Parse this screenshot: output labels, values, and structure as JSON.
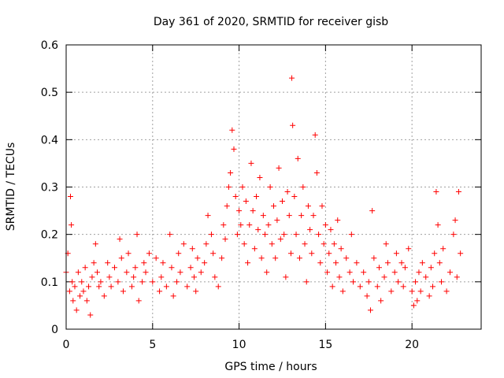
{
  "chart_data": {
    "type": "scatter",
    "title": "Day 361 of 2020, SRMTID for receiver gisb",
    "xlabel": "GPS time / hours",
    "ylabel": "SRMTID / TECUs",
    "xlim": [
      0,
      24
    ],
    "ylim": [
      0,
      0.6
    ],
    "x_ticks": [
      0,
      5,
      10,
      15,
      20
    ],
    "y_ticks": [
      0,
      0.1,
      0.2,
      0.3,
      0.4,
      0.5,
      0.6
    ],
    "x_tick_labels": [
      "0",
      "5",
      "10",
      "15",
      "20"
    ],
    "y_tick_labels": [
      "0",
      "0.1",
      "0.2",
      "0.3",
      "0.4",
      "0.5",
      "0.6"
    ],
    "grid": true,
    "marker": "+",
    "color": "#ff0000",
    "series": [
      {
        "name": "SRMTID",
        "x": [
          0.0,
          0.1,
          0.2,
          0.25,
          0.3,
          0.35,
          0.4,
          0.5,
          0.6,
          0.7,
          0.8,
          0.9,
          1.0,
          1.1,
          1.2,
          1.3,
          1.4,
          1.5,
          1.6,
          1.7,
          1.8,
          1.9,
          2.0,
          2.2,
          2.4,
          2.5,
          2.6,
          2.8,
          3.0,
          3.1,
          3.2,
          3.3,
          3.5,
          3.6,
          3.8,
          3.9,
          4.0,
          4.1,
          4.2,
          4.4,
          4.5,
          4.6,
          4.8,
          5.0,
          5.2,
          5.4,
          5.5,
          5.6,
          5.8,
          6.0,
          6.1,
          6.2,
          6.4,
          6.5,
          6.6,
          6.8,
          7.0,
          7.2,
          7.3,
          7.4,
          7.5,
          7.6,
          7.8,
          8.0,
          8.1,
          8.2,
          8.4,
          8.5,
          8.6,
          8.8,
          9.0,
          9.1,
          9.2,
          9.3,
          9.4,
          9.5,
          9.6,
          9.7,
          9.8,
          9.9,
          10.0,
          10.1,
          10.2,
          10.3,
          10.4,
          10.5,
          10.6,
          10.7,
          10.8,
          10.9,
          11.0,
          11.1,
          11.2,
          11.3,
          11.4,
          11.5,
          11.6,
          11.7,
          11.8,
          11.9,
          12.0,
          12.1,
          12.2,
          12.3,
          12.4,
          12.5,
          12.6,
          12.7,
          12.8,
          12.9,
          13.0,
          13.05,
          13.1,
          13.2,
          13.3,
          13.4,
          13.5,
          13.6,
          13.7,
          13.8,
          13.9,
          14.0,
          14.1,
          14.2,
          14.3,
          14.4,
          14.5,
          14.6,
          14.7,
          14.8,
          14.9,
          15.0,
          15.1,
          15.2,
          15.3,
          15.4,
          15.5,
          15.6,
          15.7,
          15.8,
          15.9,
          16.0,
          16.2,
          16.4,
          16.5,
          16.6,
          16.8,
          17.0,
          17.2,
          17.4,
          17.5,
          17.6,
          17.7,
          17.8,
          18.0,
          18.1,
          18.2,
          18.4,
          18.5,
          18.6,
          18.8,
          19.0,
          19.1,
          19.2,
          19.4,
          19.5,
          19.6,
          19.8,
          20.0,
          20.1,
          20.2,
          20.3,
          20.4,
          20.5,
          20.6,
          20.8,
          21.0,
          21.1,
          21.2,
          21.3,
          21.4,
          21.5,
          21.6,
          21.7,
          21.8,
          22.0,
          22.2,
          22.4,
          22.5,
          22.6,
          22.7,
          22.8
        ],
        "y": [
          0.12,
          0.16,
          0.08,
          0.28,
          0.22,
          0.1,
          0.06,
          0.09,
          0.04,
          0.12,
          0.07,
          0.1,
          0.08,
          0.13,
          0.06,
          0.09,
          0.03,
          0.11,
          0.14,
          0.18,
          0.12,
          0.09,
          0.1,
          0.07,
          0.14,
          0.11,
          0.09,
          0.13,
          0.1,
          0.19,
          0.15,
          0.08,
          0.12,
          0.16,
          0.09,
          0.11,
          0.13,
          0.2,
          0.06,
          0.1,
          0.14,
          0.12,
          0.16,
          0.1,
          0.15,
          0.08,
          0.11,
          0.14,
          0.09,
          0.2,
          0.13,
          0.07,
          0.1,
          0.16,
          0.12,
          0.18,
          0.09,
          0.13,
          0.17,
          0.11,
          0.08,
          0.15,
          0.12,
          0.14,
          0.18,
          0.24,
          0.2,
          0.16,
          0.11,
          0.09,
          0.15,
          0.22,
          0.19,
          0.26,
          0.3,
          0.33,
          0.42,
          0.38,
          0.28,
          0.2,
          0.25,
          0.22,
          0.3,
          0.18,
          0.27,
          0.14,
          0.22,
          0.35,
          0.25,
          0.17,
          0.28,
          0.21,
          0.32,
          0.15,
          0.24,
          0.2,
          0.12,
          0.22,
          0.3,
          0.18,
          0.26,
          0.15,
          0.23,
          0.34,
          0.19,
          0.27,
          0.2,
          0.11,
          0.29,
          0.24,
          0.16,
          0.53,
          0.43,
          0.28,
          0.2,
          0.36,
          0.15,
          0.24,
          0.3,
          0.18,
          0.1,
          0.26,
          0.21,
          0.16,
          0.24,
          0.41,
          0.33,
          0.2,
          0.14,
          0.26,
          0.18,
          0.22,
          0.12,
          0.16,
          0.21,
          0.09,
          0.18,
          0.14,
          0.23,
          0.11,
          0.17,
          0.08,
          0.15,
          0.12,
          0.2,
          0.1,
          0.14,
          0.09,
          0.12,
          0.07,
          0.1,
          0.04,
          0.25,
          0.15,
          0.09,
          0.13,
          0.06,
          0.11,
          0.18,
          0.14,
          0.08,
          0.12,
          0.16,
          0.1,
          0.14,
          0.09,
          0.13,
          0.17,
          0.08,
          0.05,
          0.1,
          0.06,
          0.12,
          0.08,
          0.14,
          0.11,
          0.07,
          0.13,
          0.09,
          0.16,
          0.29,
          0.22,
          0.14,
          0.1,
          0.17,
          0.08,
          0.12,
          0.2,
          0.23,
          0.11,
          0.29,
          0.16
        ]
      }
    ]
  }
}
